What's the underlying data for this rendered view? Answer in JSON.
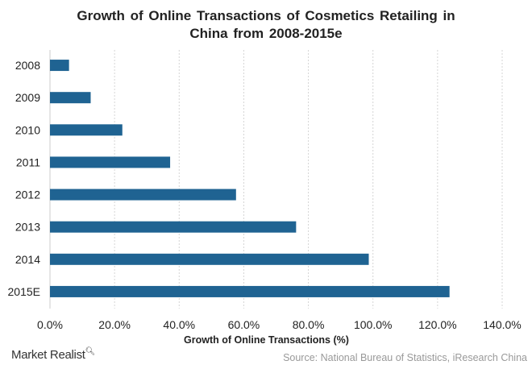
{
  "chart_data": {
    "type": "bar",
    "orientation": "horizontal",
    "title": "Growth of Online Transactions of Cosmetics Retailing in China from 2008-2015e",
    "title_lines": [
      "Growth of Online Transactions of Cosmetics Retailing in",
      "China from 2008-2015e"
    ],
    "categories": [
      "2008",
      "2009",
      "2010",
      "2011",
      "2012",
      "2013",
      "2014",
      "2015E"
    ],
    "values": [
      5.9,
      12.6,
      22.4,
      37.2,
      57.6,
      76.2,
      98.7,
      123.7
    ],
    "xlabel": "Growth of Online Transactions (%)",
    "ylabel": "",
    "xlim": [
      0,
      140
    ],
    "xticks": [
      "0.0%",
      "20.0%",
      "40.0%",
      "60.0%",
      "80.0%",
      "100.0%",
      "120.0%",
      "140.0%"
    ],
    "grid": "vertical dashed",
    "legend": "none",
    "bar_color": "#1f6392"
  },
  "branding": {
    "logo": "Market Realist"
  },
  "source": "Source: National Bureau of Statistics, iResearch China"
}
